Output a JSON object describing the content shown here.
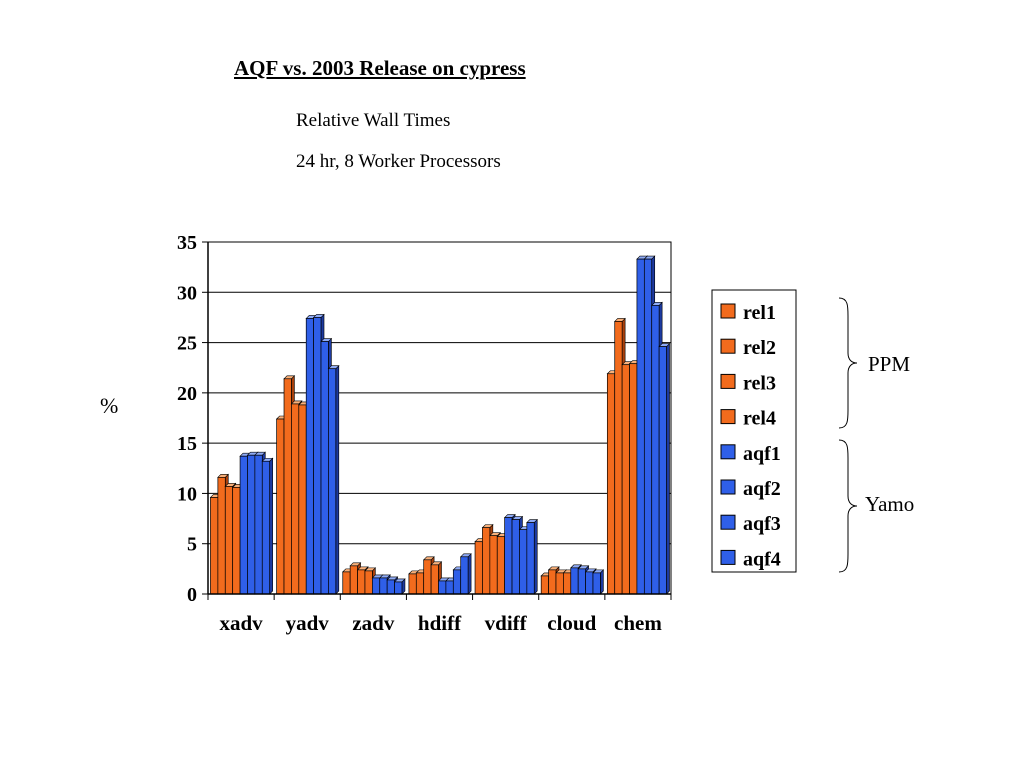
{
  "title": "AQF vs. 2003 Release on cypress",
  "subtitle_1": "Relative Wall Times",
  "subtitle_2": "24 hr, 8 Worker Processors",
  "group_labels": {
    "ppm": "PPM",
    "yamo": "Yamo"
  },
  "colors": {
    "rel": "#f26b1d",
    "aqf": "#2f5fe8",
    "rel_top": "#f9b07a",
    "aqf_top": "#8eaaf5",
    "rel_side": "#a8400c",
    "aqf_side": "#1d3aa0"
  },
  "chart_data": {
    "type": "bar",
    "title": "",
    "xlabel": "",
    "ylabel": "%",
    "ylim": [
      0,
      35
    ],
    "yticks": [
      0,
      5,
      10,
      15,
      20,
      25,
      30,
      35
    ],
    "grid": true,
    "legend_position": "right",
    "categories": [
      "xadv",
      "yadv",
      "zadv",
      "hdiff",
      "vdiff",
      "cloud",
      "chem"
    ],
    "series": [
      {
        "name": "rel1",
        "color_key": "rel",
        "values": [
          9.6,
          17.4,
          2.2,
          2.0,
          5.2,
          1.8,
          21.9
        ]
      },
      {
        "name": "rel2",
        "color_key": "rel",
        "values": [
          11.6,
          21.4,
          2.8,
          2.1,
          6.6,
          2.4,
          27.1
        ]
      },
      {
        "name": "rel3",
        "color_key": "rel",
        "values": [
          10.7,
          18.9,
          2.4,
          3.4,
          5.8,
          2.1,
          22.8
        ]
      },
      {
        "name": "rel4",
        "color_key": "rel",
        "values": [
          10.6,
          18.8,
          2.3,
          2.9,
          5.7,
          2.1,
          22.9
        ]
      },
      {
        "name": "aqf1",
        "color_key": "aqf",
        "values": [
          13.7,
          27.4,
          1.6,
          1.3,
          7.6,
          2.6,
          33.3
        ]
      },
      {
        "name": "aqf2",
        "color_key": "aqf",
        "values": [
          13.8,
          27.5,
          1.6,
          1.3,
          7.4,
          2.5,
          33.3
        ]
      },
      {
        "name": "aqf3",
        "color_key": "aqf",
        "values": [
          13.8,
          25.1,
          1.4,
          2.4,
          6.4,
          2.2,
          28.7
        ]
      },
      {
        "name": "aqf4",
        "color_key": "aqf",
        "values": [
          13.2,
          22.4,
          1.2,
          3.7,
          7.1,
          2.1,
          24.6
        ]
      }
    ]
  }
}
